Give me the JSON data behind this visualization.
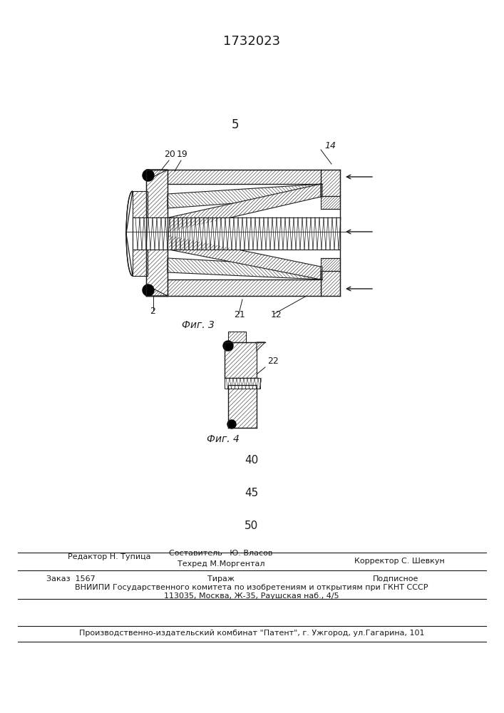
{
  "title": "1732023",
  "page_num": "5",
  "fig3_label": "Фиг. 3",
  "fig4_label": "Фиг. 4",
  "num_40": "40",
  "num_45": "45",
  "num_50": "50",
  "label_14": "14",
  "label_19": "19",
  "label_20": "20",
  "label_2": "2",
  "label_21": "21",
  "label_12": "12",
  "label_22": "22",
  "footer_editor": "Редактор Н. Тупица",
  "footer_comp": "Составитель   Ю. Власов",
  "footer_tech": "Техред М.Моргентал",
  "footer_corr": "Корректор С. Шевкун",
  "footer_order": "Заказ  1567",
  "footer_tirazh": "Тираж",
  "footer_podp": "Подписное",
  "footer_vniip": "ВНИИПИ Государственного комитета по изобретениям и открытиям при ГКНТ СССР",
  "footer_addr": "113035, Москва, Ж-35, Раушская наб., 4/5",
  "footer_proizv": "Производственно-издательский комбинат \"Патент\", г. Ужгород, ул.Гагарина, 101",
  "bg_color": "#ffffff",
  "lc": "#1a1a1a",
  "tc": "#1a1a1a"
}
